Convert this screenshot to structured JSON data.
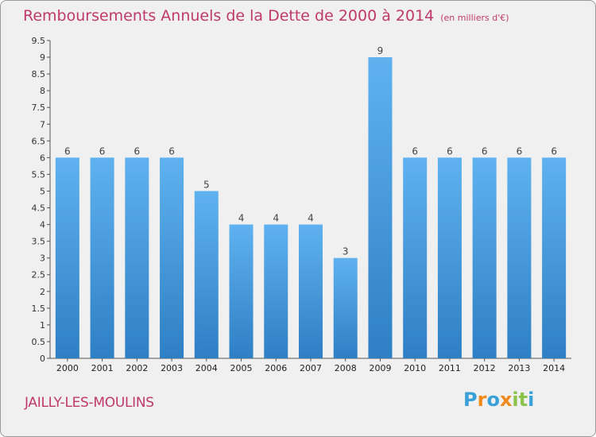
{
  "chart_data": {
    "type": "bar",
    "title": "Remboursements Annuels de la Dette de 2000 à 2014",
    "unit": "(en milliers d'€)",
    "categories": [
      "2000",
      "2001",
      "2002",
      "2003",
      "2004",
      "2005",
      "2006",
      "2007",
      "2008",
      "2009",
      "2010",
      "2011",
      "2012",
      "2013",
      "2014"
    ],
    "values": [
      6,
      6,
      6,
      6,
      5,
      4,
      4,
      4,
      3,
      9,
      6,
      6,
      6,
      6,
      6
    ],
    "data_labels": [
      "6",
      "6",
      "6",
      "6",
      "5",
      "4",
      "4",
      "4",
      "3",
      "9",
      "6",
      "6",
      "6",
      "6",
      "6"
    ],
    "ylim": [
      0,
      9.5
    ],
    "yticks": [
      "0",
      "0.5",
      "1",
      "1.5",
      "2",
      "2.5",
      "3",
      "3.5",
      "4",
      "4.5",
      "5",
      "5.5",
      "6",
      "6.5",
      "7",
      "7.5",
      "8",
      "8.5",
      "9",
      "9.5"
    ],
    "grid": false,
    "bar_color": "#4a9fe0",
    "bar_color_dark": "#2e7fc4"
  },
  "footer": {
    "commune": "JAILLY-LES-MOULINS",
    "logo_text": "Proxiti"
  },
  "colors": {
    "title": "#c0396b",
    "logo_letters": [
      "#3aa0d8",
      "#f08a1a",
      "#3aa0d8",
      "#f08a1a",
      "#8bc34a",
      "#8bc34a",
      "#3aa0d8"
    ]
  }
}
